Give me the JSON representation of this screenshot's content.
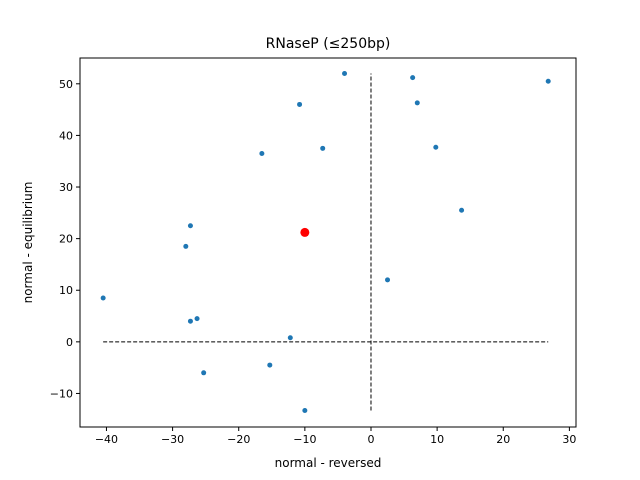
{
  "chart_data": {
    "type": "scatter",
    "title": "RNaseP (≤250bp)",
    "xlabel": "normal - reversed",
    "ylabel": "normal - equilibrium",
    "xlim": [
      -44,
      31
    ],
    "ylim": [
      -16.5,
      55
    ],
    "xticks": [
      -40,
      -30,
      -20,
      -10,
      0,
      10,
      20,
      30
    ],
    "yticks": [
      -10,
      0,
      10,
      20,
      30,
      40,
      50
    ],
    "grid": false,
    "series": [
      {
        "color": "#1f77b4",
        "points": [
          [
            -40.5,
            8.5
          ],
          [
            -28.0,
            18.5
          ],
          [
            -27.3,
            22.5
          ],
          [
            -27.3,
            4.0
          ],
          [
            -26.3,
            4.5
          ],
          [
            -25.3,
            -6.0
          ],
          [
            -16.5,
            36.5
          ],
          [
            -15.3,
            -4.5
          ],
          [
            -12.2,
            0.8
          ],
          [
            -10.8,
            46.0
          ],
          [
            -10.0,
            -13.3
          ],
          [
            -7.3,
            37.5
          ],
          [
            -4.0,
            52.0
          ],
          [
            2.5,
            12.0
          ],
          [
            6.3,
            51.2
          ],
          [
            7.0,
            46.3
          ],
          [
            9.8,
            37.7
          ],
          [
            13.7,
            25.5
          ],
          [
            26.8,
            50.5
          ]
        ]
      },
      {
        "color": "#ff0000",
        "points": [
          [
            -10.0,
            21.2
          ]
        ]
      }
    ],
    "reference_lines": [
      {
        "orientation": "horizontal",
        "y": 0,
        "x_from": -40.5,
        "x_to": 26.8,
        "style": "dashed",
        "color": "#000000"
      },
      {
        "orientation": "vertical",
        "x": 0,
        "y_from": -13.3,
        "y_to": 52.0,
        "style": "dashed",
        "color": "#000000"
      }
    ]
  }
}
